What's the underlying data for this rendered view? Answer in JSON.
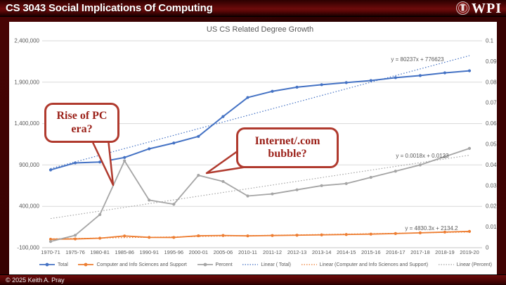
{
  "header": {
    "course_title": "CS 3043 Social Implications Of Computing",
    "logo_text": "WPI"
  },
  "footer": {
    "copyright": "© 2025 Keith A. Pray"
  },
  "callouts": [
    {
      "line1": "Rise of PC",
      "line2": "era?"
    },
    {
      "line1": "Internet/.com",
      "line2": "bubble?"
    }
  ],
  "colors": {
    "series_total": "#4472C4",
    "series_cs_support": "#ED7D31",
    "series_percent": "#A5A5A5",
    "gridline": "#D9D9D9",
    "axis_text": "#595959",
    "callout_border": "#B03A2E",
    "callout_text": "#9A1F17",
    "header_red": "#6D0B0B"
  },
  "chart_data": {
    "type": "line",
    "title": "US CS Related Degree Growth",
    "grid": true,
    "legend_position": "bottom",
    "categories": [
      "1970-71",
      "1975-76",
      "1980-81",
      "1985-86",
      "1990-91",
      "1995-96",
      "2000-01",
      "2005-06",
      "2010-11",
      "2011-12",
      "2012-13",
      "2013-14",
      "2014-15",
      "2015-16",
      "2016-17",
      "2017-18",
      "2018-19",
      "2019-20"
    ],
    "left_axis": {
      "min": -100000,
      "max": 2400000,
      "step": 500000,
      "ticks": [
        "-100,000",
        "400,000",
        "900,000",
        "1,400,000",
        "1,900,000",
        "2,400,000"
      ]
    },
    "right_axis": {
      "min": 0,
      "max": 0.1,
      "step": 0.01,
      "ticks": [
        "0",
        "0.01",
        "0.02",
        "0.03",
        "0.04",
        "0.05",
        "0.06",
        "0.07",
        "0.08",
        "0.09",
        "0.1"
      ]
    },
    "series": [
      {
        "name": "Total",
        "axis": "left",
        "color": "#4472C4",
        "values": [
          840000,
          925000,
          935000,
          990000,
          1095000,
          1165000,
          1245000,
          1485000,
          1715000,
          1790000,
          1840000,
          1870000,
          1895000,
          1920000,
          1955000,
          1980000,
          2013000,
          2038000
        ]
      },
      {
        "name": "Computer and Info Sciences and Support",
        "axis": "left",
        "color": "#ED7D31",
        "values": [
          2400,
          5700,
          15000,
          42000,
          25000,
          24000,
          44000,
          47500,
          43000,
          47400,
          51000,
          55000,
          59500,
          64400,
          71400,
          79600,
          88600,
          97000
        ]
      },
      {
        "name": "Percent",
        "axis": "right",
        "color": "#A5A5A5",
        "values": [
          0.003,
          0.006,
          0.016,
          0.042,
          0.023,
          0.021,
          0.035,
          0.032,
          0.025,
          0.026,
          0.028,
          0.03,
          0.031,
          0.034,
          0.037,
          0.04,
          0.044,
          0.048
        ]
      }
    ],
    "trendlines": [
      {
        "name": "Linear ( Total)",
        "equation": "y = 80237x + 776623",
        "slope": 80237,
        "intercept": 776623,
        "axis": "left",
        "color": "#4472C4",
        "label_pos": [
          594,
          87
        ]
      },
      {
        "name": "Linear (Computer and Info Sciences and Support)",
        "equation": "y = 4830.3x + 2134.2",
        "slope": 4830.3,
        "intercept": 2134.2,
        "axis": "left",
        "color": "#ED7D31",
        "label_pos": [
          614,
          327
        ]
      },
      {
        "name": "Linear (Percent)",
        "equation": "y = 0.0018x + 0.0123",
        "slope": 0.0018,
        "intercept": 0.0123,
        "axis": "right",
        "color": "#A5A5A5",
        "label_pos": [
          601,
          224
        ]
      }
    ]
  }
}
